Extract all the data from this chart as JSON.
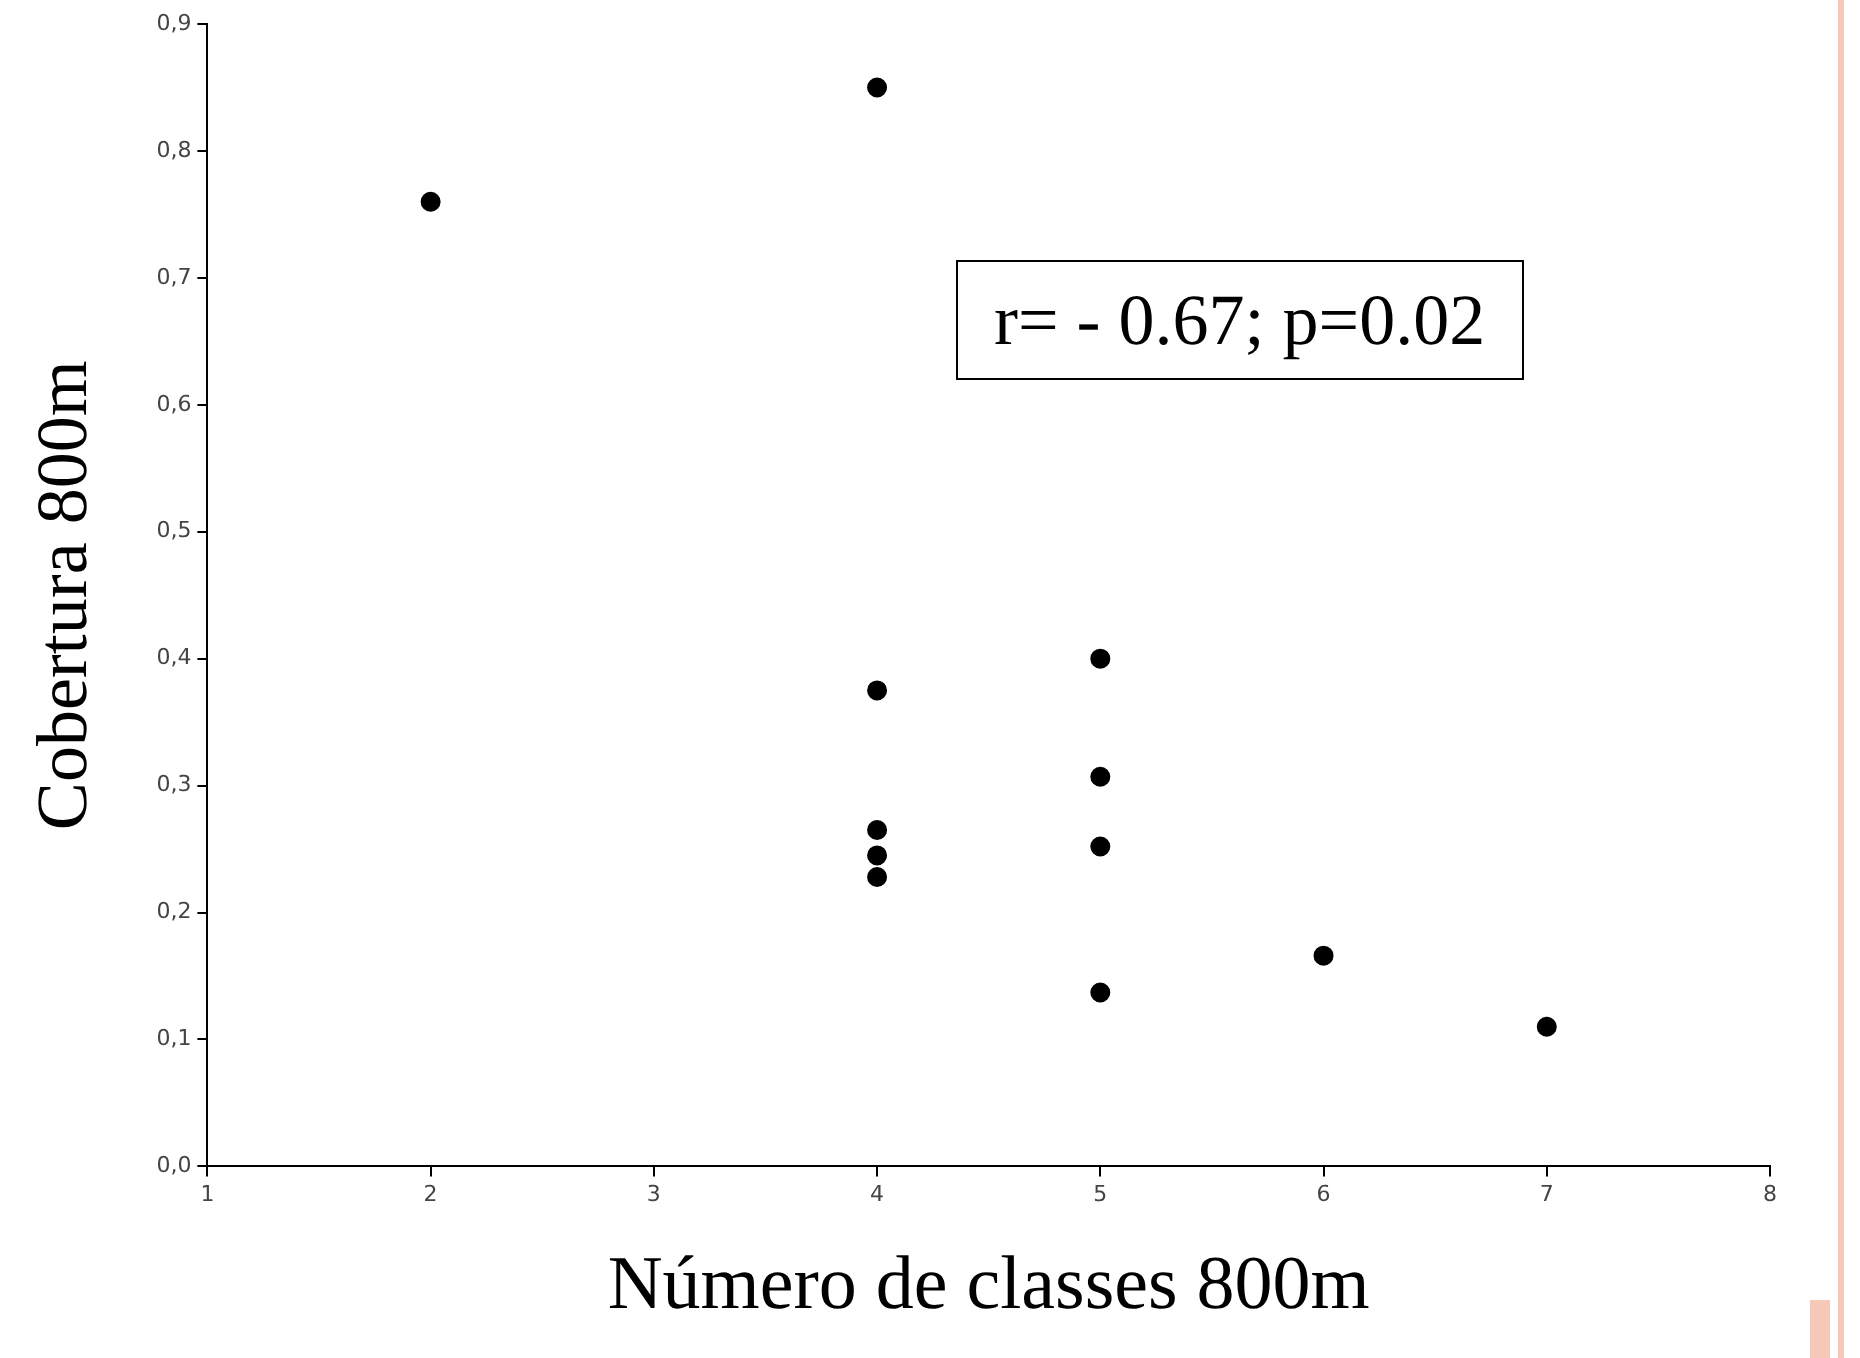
{
  "chart_data": {
    "type": "scatter",
    "xlabel": "Número de classes 800m",
    "ylabel": "Cobertura 800m",
    "x": [
      2,
      4,
      4,
      4,
      4,
      4,
      5,
      5,
      5,
      5,
      6,
      7
    ],
    "series": [
      {
        "color": "#000000",
        "values": [
          0.76,
          0.85,
          0.375,
          0.265,
          0.245,
          0.228,
          0.4,
          0.307,
          0.252,
          0.137,
          0.166,
          0.11
        ]
      }
    ],
    "xlim": [
      1,
      8
    ],
    "xticks": [
      1,
      2,
      3,
      4,
      5,
      6,
      7,
      8
    ],
    "ylim": [
      0,
      0.9
    ],
    "yticks": [
      {
        "value": 0,
        "label": "0,0"
      },
      {
        "value": 0.1,
        "label": "0,1"
      },
      {
        "value": 0.2,
        "label": "0,2"
      },
      {
        "value": 0.3,
        "label": "0,3"
      },
      {
        "value": 0.4,
        "label": "0,4"
      },
      {
        "value": 0.5,
        "label": "0,5"
      },
      {
        "value": 0.6,
        "label": "0,6"
      },
      {
        "value": 0.7,
        "label": "0,7"
      },
      {
        "value": 0.8,
        "label": "0,8"
      },
      {
        "value": 0.9,
        "label": "0,9"
      }
    ],
    "annotations": [
      "r= - 0.67; p=0.02"
    ],
    "grid": false,
    "legend": false,
    "marker": "circle"
  }
}
